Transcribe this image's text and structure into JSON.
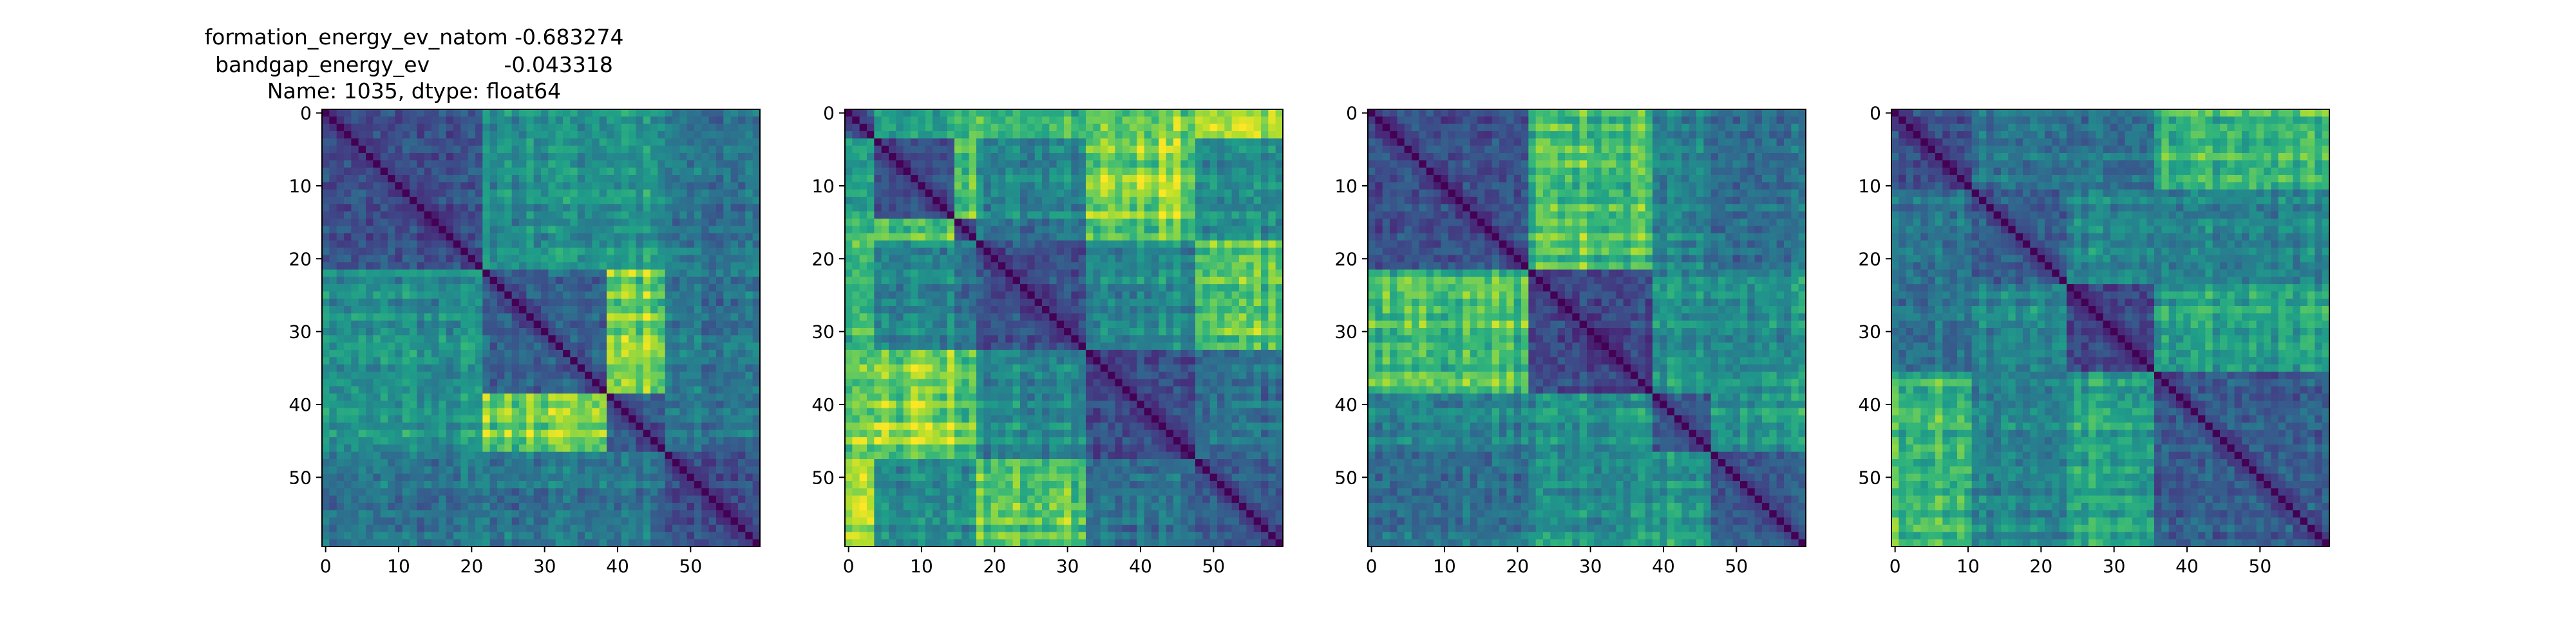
{
  "figure": {
    "title_lines": [
      "formation_energy_ev_natom   -0.683274",
      "bandgap_energy_ev           -0.043318",
      "Name: 1035, dtype: float64"
    ]
  },
  "chart_data": [
    {
      "type": "heatmap",
      "colormap": "viridis",
      "size": 60,
      "xticks": [
        0,
        10,
        20,
        30,
        40,
        50
      ],
      "yticks": [
        0,
        10,
        20,
        30,
        40,
        50
      ],
      "xlim": [
        -0.5,
        59.5
      ],
      "ylim": [
        59.5,
        -0.5
      ],
      "block_boundaries": [
        0,
        22,
        39,
        47,
        60
      ],
      "note": "symmetric distance-like matrix, zero diagonal",
      "seed": 11
    },
    {
      "type": "heatmap",
      "colormap": "viridis",
      "size": 60,
      "xticks": [
        0,
        10,
        20,
        30,
        40,
        50
      ],
      "yticks": [
        0,
        10,
        20,
        30,
        40,
        50
      ],
      "xlim": [
        -0.5,
        59.5
      ],
      "ylim": [
        59.5,
        -0.5
      ],
      "block_boundaries": [
        0,
        4,
        15,
        18,
        33,
        48,
        60
      ],
      "note": "symmetric distance-like matrix, zero diagonal",
      "seed": 23
    },
    {
      "type": "heatmap",
      "colormap": "viridis",
      "size": 60,
      "xticks": [
        0,
        10,
        20,
        30,
        40,
        50
      ],
      "yticks": [
        0,
        10,
        20,
        30,
        40,
        50
      ],
      "xlim": [
        -0.5,
        59.5
      ],
      "ylim": [
        59.5,
        -0.5
      ],
      "block_boundaries": [
        0,
        22,
        39,
        47,
        60
      ],
      "note": "symmetric distance-like matrix, zero diagonal",
      "seed": 37
    },
    {
      "type": "heatmap",
      "colormap": "viridis",
      "size": 60,
      "xticks": [
        0,
        10,
        20,
        30,
        40,
        50
      ],
      "yticks": [
        0,
        10,
        20,
        30,
        40,
        50
      ],
      "xlim": [
        -0.5,
        59.5
      ],
      "ylim": [
        59.5,
        -0.5
      ],
      "block_boundaries": [
        0,
        11,
        24,
        36,
        60
      ],
      "note": "symmetric distance-like matrix, zero diagonal",
      "seed": 53
    }
  ]
}
